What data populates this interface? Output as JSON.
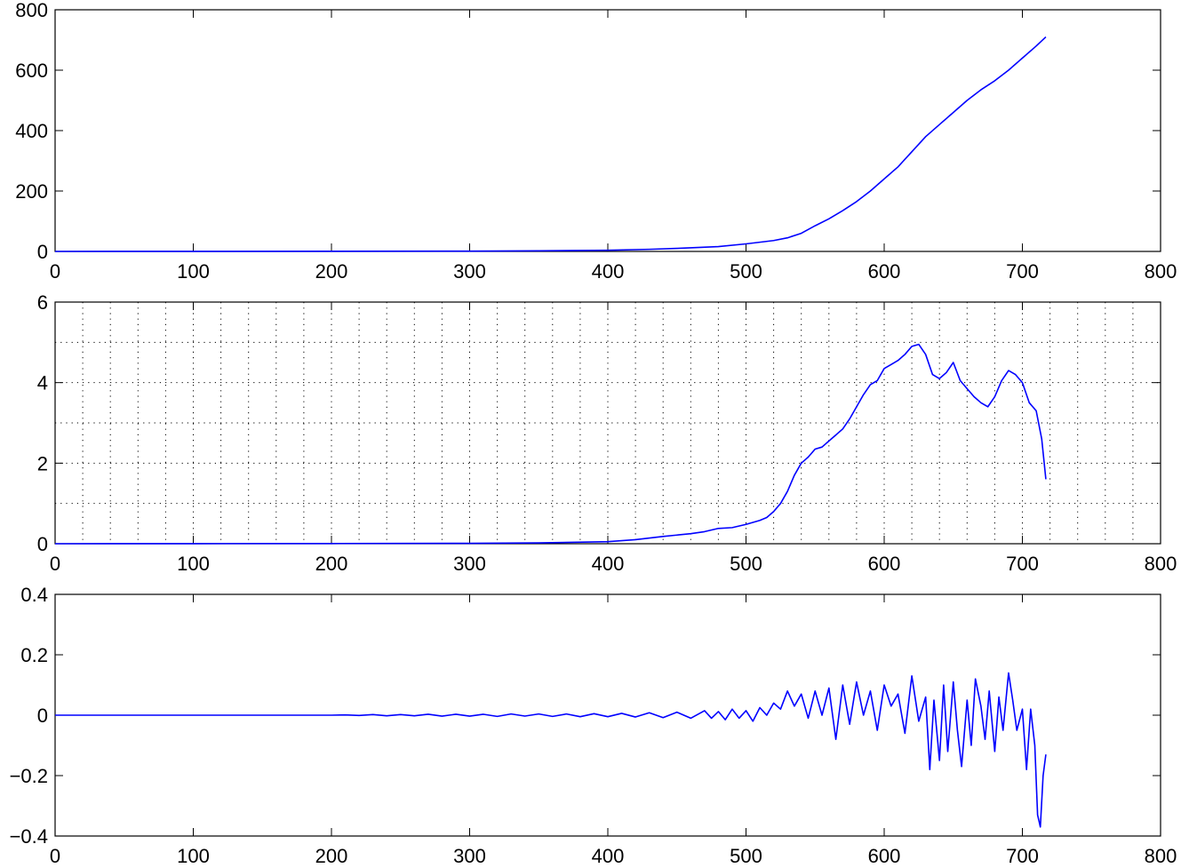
{
  "chart_data": [
    {
      "type": "line",
      "title": "",
      "xlabel": "",
      "ylabel": "",
      "xlim": [
        0,
        800
      ],
      "ylim": [
        0,
        800
      ],
      "xticks": [
        0,
        100,
        200,
        300,
        400,
        500,
        600,
        700,
        800
      ],
      "yticks": [
        0,
        200,
        400,
        600,
        800
      ],
      "ytick_labels": [
        "0",
        "200",
        "400",
        "600",
        "800"
      ],
      "grid": false,
      "legend": "none",
      "series": [
        {
          "color": "#0000ff",
          "x": [
            0,
            100,
            200,
            300,
            350,
            400,
            430,
            450,
            480,
            500,
            520,
            530,
            540,
            550,
            560,
            570,
            580,
            590,
            600,
            610,
            620,
            630,
            640,
            650,
            660,
            670,
            680,
            690,
            700,
            710,
            717
          ],
          "y": [
            0,
            0.2,
            0.5,
            1,
            2,
            4,
            7,
            10,
            16,
            25,
            36,
            45,
            60,
            85,
            108,
            135,
            165,
            200,
            240,
            280,
            330,
            380,
            420,
            460,
            500,
            535,
            565,
            600,
            640,
            680,
            710
          ]
        }
      ]
    },
    {
      "type": "line",
      "title": "",
      "xlabel": "",
      "ylabel": "",
      "xlim": [
        0,
        800
      ],
      "ylim": [
        0,
        6
      ],
      "xticks": [
        0,
        100,
        200,
        300,
        400,
        500,
        600,
        700,
        800
      ],
      "yticks": [
        0,
        2,
        4,
        6
      ],
      "ytick_labels": [
        "0",
        "2",
        "4",
        "6"
      ],
      "grid": true,
      "grid_x_step": 20,
      "grid_y_step": 1,
      "legend": "none",
      "series": [
        {
          "color": "#0000ff",
          "x": [
            0,
            100,
            200,
            300,
            350,
            400,
            420,
            440,
            460,
            470,
            480,
            490,
            500,
            510,
            515,
            520,
            525,
            530,
            535,
            540,
            545,
            550,
            555,
            560,
            565,
            570,
            575,
            580,
            585,
            590,
            595,
            600,
            605,
            610,
            615,
            620,
            625,
            630,
            635,
            640,
            645,
            650,
            655,
            660,
            665,
            670,
            675,
            680,
            685,
            690,
            695,
            700,
            705,
            710,
            714,
            717
          ],
          "y": [
            0,
            0.002,
            0.005,
            0.01,
            0.02,
            0.05,
            0.1,
            0.18,
            0.25,
            0.3,
            0.38,
            0.4,
            0.48,
            0.58,
            0.65,
            0.8,
            1.0,
            1.3,
            1.7,
            2.0,
            2.15,
            2.35,
            2.4,
            2.55,
            2.7,
            2.85,
            3.1,
            3.4,
            3.7,
            3.95,
            4.05,
            4.35,
            4.45,
            4.55,
            4.7,
            4.9,
            4.95,
            4.7,
            4.2,
            4.1,
            4.25,
            4.5,
            4.05,
            3.85,
            3.65,
            3.5,
            3.4,
            3.65,
            4.05,
            4.3,
            4.2,
            4.0,
            3.5,
            3.3,
            2.6,
            1.6
          ]
        }
      ]
    },
    {
      "type": "line",
      "title": "",
      "xlabel": "",
      "ylabel": "",
      "xlim": [
        0,
        800
      ],
      "ylim": [
        -0.4,
        0.4
      ],
      "xticks": [
        0,
        100,
        200,
        300,
        400,
        500,
        600,
        700,
        800
      ],
      "yticks": [
        -0.4,
        -0.2,
        0,
        0.2,
        0.4
      ],
      "ytick_labels": [
        "−0.4",
        "−0.2",
        "0",
        "0.2",
        "0.4"
      ],
      "grid": false,
      "legend": "none",
      "series": [
        {
          "color": "#0000ff",
          "x": [
            0,
            200,
            210,
            220,
            230,
            240,
            250,
            260,
            270,
            280,
            290,
            300,
            310,
            320,
            330,
            340,
            350,
            360,
            370,
            380,
            390,
            400,
            410,
            420,
            430,
            440,
            450,
            460,
            470,
            475,
            480,
            485,
            490,
            495,
            500,
            505,
            510,
            515,
            520,
            525,
            530,
            535,
            540,
            545,
            550,
            555,
            560,
            565,
            570,
            575,
            580,
            585,
            590,
            595,
            600,
            605,
            610,
            615,
            620,
            625,
            630,
            633,
            636,
            640,
            643,
            646,
            650,
            653,
            656,
            660,
            663,
            666,
            670,
            673,
            676,
            680,
            683,
            686,
            690,
            693,
            696,
            700,
            703,
            706,
            709,
            711,
            713,
            715,
            717
          ],
          "y": [
            0,
            0,
            0.001,
            -0.001,
            0.002,
            -0.002,
            0.002,
            -0.002,
            0.003,
            -0.003,
            0.003,
            -0.003,
            0.003,
            -0.004,
            0.004,
            -0.003,
            0.004,
            -0.004,
            0.004,
            -0.005,
            0.005,
            -0.005,
            0.006,
            -0.006,
            0.008,
            -0.008,
            0.01,
            -0.01,
            0.015,
            -0.01,
            0.012,
            -0.015,
            0.02,
            -0.01,
            0.015,
            -0.02,
            0.025,
            0.0,
            0.04,
            0.02,
            0.08,
            0.03,
            0.07,
            -0.01,
            0.08,
            0.0,
            0.09,
            -0.08,
            0.1,
            -0.03,
            0.11,
            0.0,
            0.08,
            -0.05,
            0.1,
            0.03,
            0.07,
            -0.06,
            0.13,
            -0.02,
            0.06,
            -0.18,
            0.05,
            -0.15,
            0.1,
            -0.12,
            0.11,
            -0.05,
            -0.17,
            0.05,
            -0.1,
            0.12,
            0.03,
            -0.08,
            0.08,
            -0.12,
            0.06,
            -0.05,
            0.14,
            0.05,
            -0.05,
            0.02,
            -0.18,
            0.02,
            -0.1,
            -0.33,
            -0.37,
            -0.2,
            -0.13
          ]
        }
      ]
    }
  ]
}
